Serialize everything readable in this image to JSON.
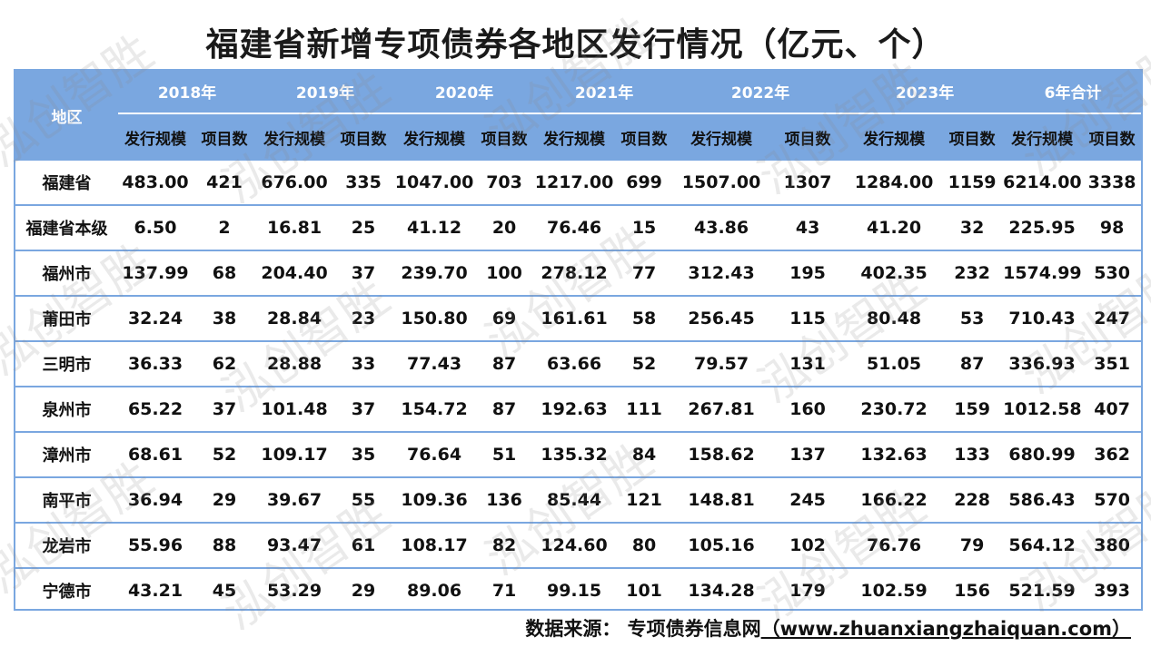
{
  "title": "福建省新增专项债券各地区发行情况（亿元、个）",
  "header": {
    "region_label": "地区",
    "years": [
      "2018年",
      "2019年",
      "2020年",
      "2021年",
      "2022年",
      "2023年",
      "6年合计"
    ],
    "sub_amount": "发行规模",
    "sub_count": "项目数"
  },
  "rows": [
    {
      "name": "福建省",
      "cells": [
        "483.00",
        "421",
        "676.00",
        "335",
        "1047.00",
        "703",
        "1217.00",
        "699",
        "1507.00",
        "1307",
        "1284.00",
        "1159",
        "6214.00",
        "3338"
      ]
    },
    {
      "name": "福建省本级",
      "cells": [
        "6.50",
        "2",
        "16.81",
        "25",
        "41.12",
        "20",
        "76.46",
        "15",
        "43.86",
        "43",
        "41.20",
        "32",
        "225.95",
        "98"
      ]
    },
    {
      "name": "福州市",
      "cells": [
        "137.99",
        "68",
        "204.40",
        "37",
        "239.70",
        "100",
        "278.12",
        "77",
        "312.43",
        "195",
        "402.35",
        "232",
        "1574.99",
        "530"
      ]
    },
    {
      "name": "莆田市",
      "cells": [
        "32.24",
        "38",
        "28.84",
        "23",
        "150.80",
        "69",
        "161.61",
        "58",
        "256.45",
        "115",
        "80.48",
        "53",
        "710.43",
        "247"
      ]
    },
    {
      "name": "三明市",
      "cells": [
        "36.33",
        "62",
        "28.88",
        "33",
        "77.43",
        "87",
        "63.66",
        "52",
        "79.57",
        "131",
        "51.05",
        "87",
        "336.93",
        "351"
      ]
    },
    {
      "name": "泉州市",
      "cells": [
        "65.22",
        "37",
        "101.48",
        "37",
        "154.72",
        "87",
        "192.63",
        "111",
        "267.81",
        "160",
        "230.72",
        "159",
        "1012.58",
        "407"
      ]
    },
    {
      "name": "漳州市",
      "cells": [
        "68.61",
        "52",
        "109.17",
        "35",
        "76.64",
        "51",
        "135.32",
        "84",
        "158.62",
        "137",
        "132.63",
        "133",
        "680.99",
        "362"
      ]
    },
    {
      "name": "南平市",
      "cells": [
        "36.94",
        "29",
        "39.67",
        "55",
        "109.36",
        "136",
        "85.44",
        "121",
        "148.81",
        "245",
        "166.22",
        "228",
        "586.43",
        "570"
      ]
    },
    {
      "name": "龙岩市",
      "cells": [
        "55.96",
        "88",
        "93.47",
        "61",
        "108.17",
        "82",
        "124.60",
        "80",
        "105.16",
        "102",
        "76.76",
        "79",
        "564.12",
        "380"
      ]
    },
    {
      "name": "宁德市",
      "cells": [
        "43.21",
        "45",
        "53.29",
        "29",
        "89.06",
        "71",
        "99.15",
        "101",
        "134.28",
        "179",
        "102.59",
        "156",
        "521.59",
        "393"
      ]
    }
  ],
  "source": {
    "label": "数据来源：",
    "site_name": "专项债券信息网",
    "url": "（www.zhuanxiangzhaiquan.com）"
  },
  "watermark": "泓创智胜",
  "colors": {
    "header_bg": "#7aa7e0",
    "grid_line": "#7aa7e0",
    "text": "#111111"
  }
}
